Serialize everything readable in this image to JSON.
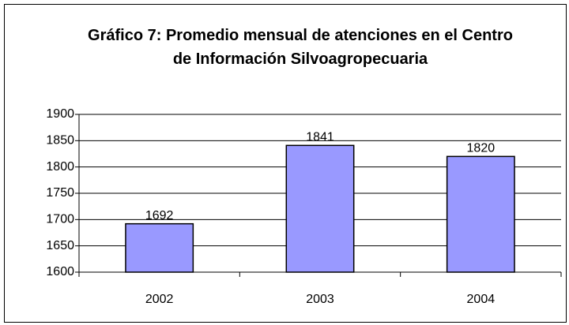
{
  "chart_data": {
    "type": "bar",
    "title": "Gráfico 7: Promedio mensual de atenciones en el Centro de Información Silvoagropecuaria",
    "categories": [
      "2002",
      "2003",
      "2004"
    ],
    "values": [
      1692,
      1841,
      1820
    ],
    "color": "#9999ff",
    "ylim": [
      1600,
      1900
    ],
    "yticks": [
      1600,
      1650,
      1700,
      1750,
      1800,
      1850,
      1900
    ],
    "grid": true
  }
}
